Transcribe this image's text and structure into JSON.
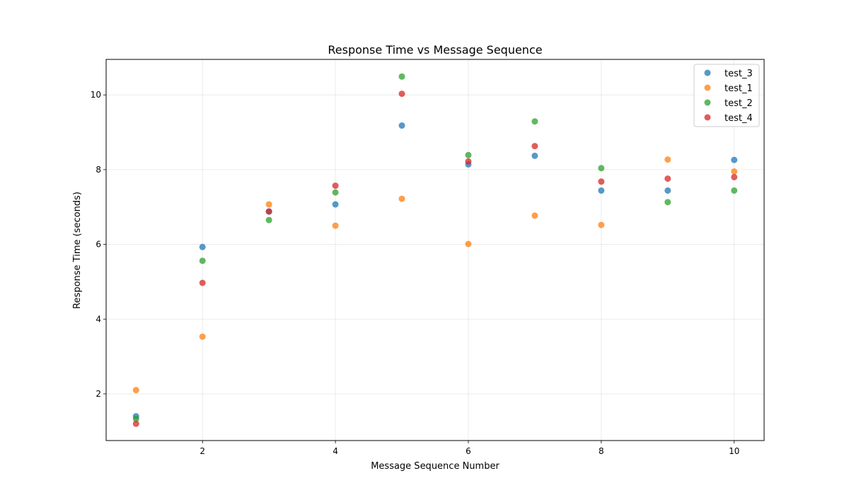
{
  "chart_data": {
    "type": "scatter",
    "title": "Response Time vs Message Sequence",
    "xlabel": "Message Sequence Number",
    "ylabel": "Response Time (seconds)",
    "xlim": [
      0.55,
      10.45
    ],
    "ylim": [
      0.75,
      10.95
    ],
    "xticks": [
      2,
      4,
      6,
      8,
      10
    ],
    "yticks": [
      2,
      4,
      6,
      8,
      10
    ],
    "grid": true,
    "legend_position": "top-right",
    "x": [
      1,
      2,
      3,
      4,
      5,
      6,
      7,
      8,
      9,
      10
    ],
    "series": [
      {
        "name": "test_3",
        "color": "#1f77b4",
        "values": [
          1.4,
          5.93,
          6.88,
          7.07,
          9.18,
          8.14,
          8.37,
          7.44,
          7.44,
          8.26
        ]
      },
      {
        "name": "test_1",
        "color": "#ff7f0e",
        "values": [
          2.1,
          3.53,
          7.07,
          6.5,
          7.22,
          6.01,
          6.77,
          6.52,
          8.27,
          7.95
        ]
      },
      {
        "name": "test_2",
        "color": "#2ca02c",
        "values": [
          1.33,
          5.56,
          6.65,
          7.39,
          10.49,
          8.39,
          9.29,
          8.04,
          7.13,
          7.44
        ]
      },
      {
        "name": "test_4",
        "color": "#d62728",
        "values": [
          1.2,
          4.97,
          6.88,
          7.57,
          10.03,
          8.22,
          8.63,
          7.68,
          7.76,
          7.8
        ]
      }
    ]
  }
}
